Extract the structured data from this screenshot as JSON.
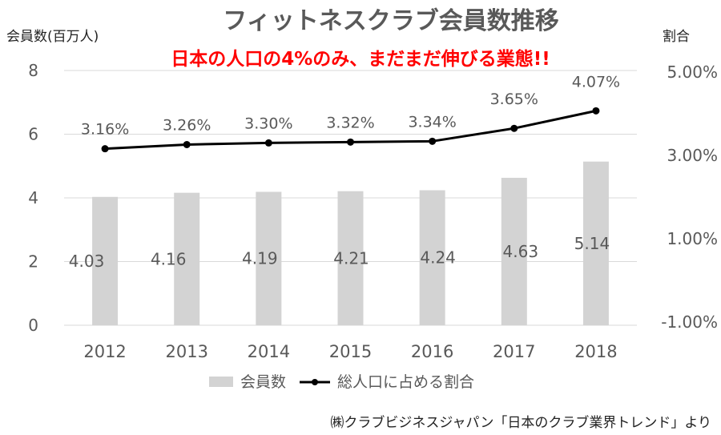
{
  "chart_data": {
    "type": "bar+line",
    "title": "フィットネスクラブ会員数推移",
    "subtitle": "日本の人口の4%のみ、まだまだ伸びる業態!!",
    "y_left_label": "会員数(百万人)",
    "y_right_label": "割合",
    "categories": [
      "2012",
      "2013",
      "2014",
      "2015",
      "2016",
      "2017",
      "2018"
    ],
    "series": [
      {
        "name": "会員数",
        "type": "bar",
        "axis": "left",
        "values": [
          4.03,
          4.16,
          4.19,
          4.21,
          4.24,
          4.63,
          5.14
        ],
        "labels": [
          "4.03",
          "4.16",
          "4.19",
          "4.21",
          "4.24",
          "4.63",
          "5.14"
        ],
        "color": "#d3d3d3"
      },
      {
        "name": "総人口に占める割合",
        "type": "line",
        "axis": "right",
        "values": [
          3.16,
          3.26,
          3.3,
          3.32,
          3.34,
          3.65,
          4.07
        ],
        "labels": [
          "3.16%",
          "3.26%",
          "3.30%",
          "3.32%",
          "3.34%",
          "3.65%",
          "4.07%"
        ],
        "color": "#000000"
      }
    ],
    "y_left_ticks": [
      "0",
      "2",
      "4",
      "6",
      "8"
    ],
    "y_left_range": [
      0,
      8
    ],
    "y_right_ticks": [
      "-1.00%",
      "1.00%",
      "3.00%",
      "5.00%"
    ],
    "y_right_tick_values": [
      -1,
      1,
      3,
      5
    ],
    "grid": true,
    "legend_position": "bottom",
    "source": "㈱クラブビジネスジャパン「日本のクラブ業界トレンド」より"
  }
}
